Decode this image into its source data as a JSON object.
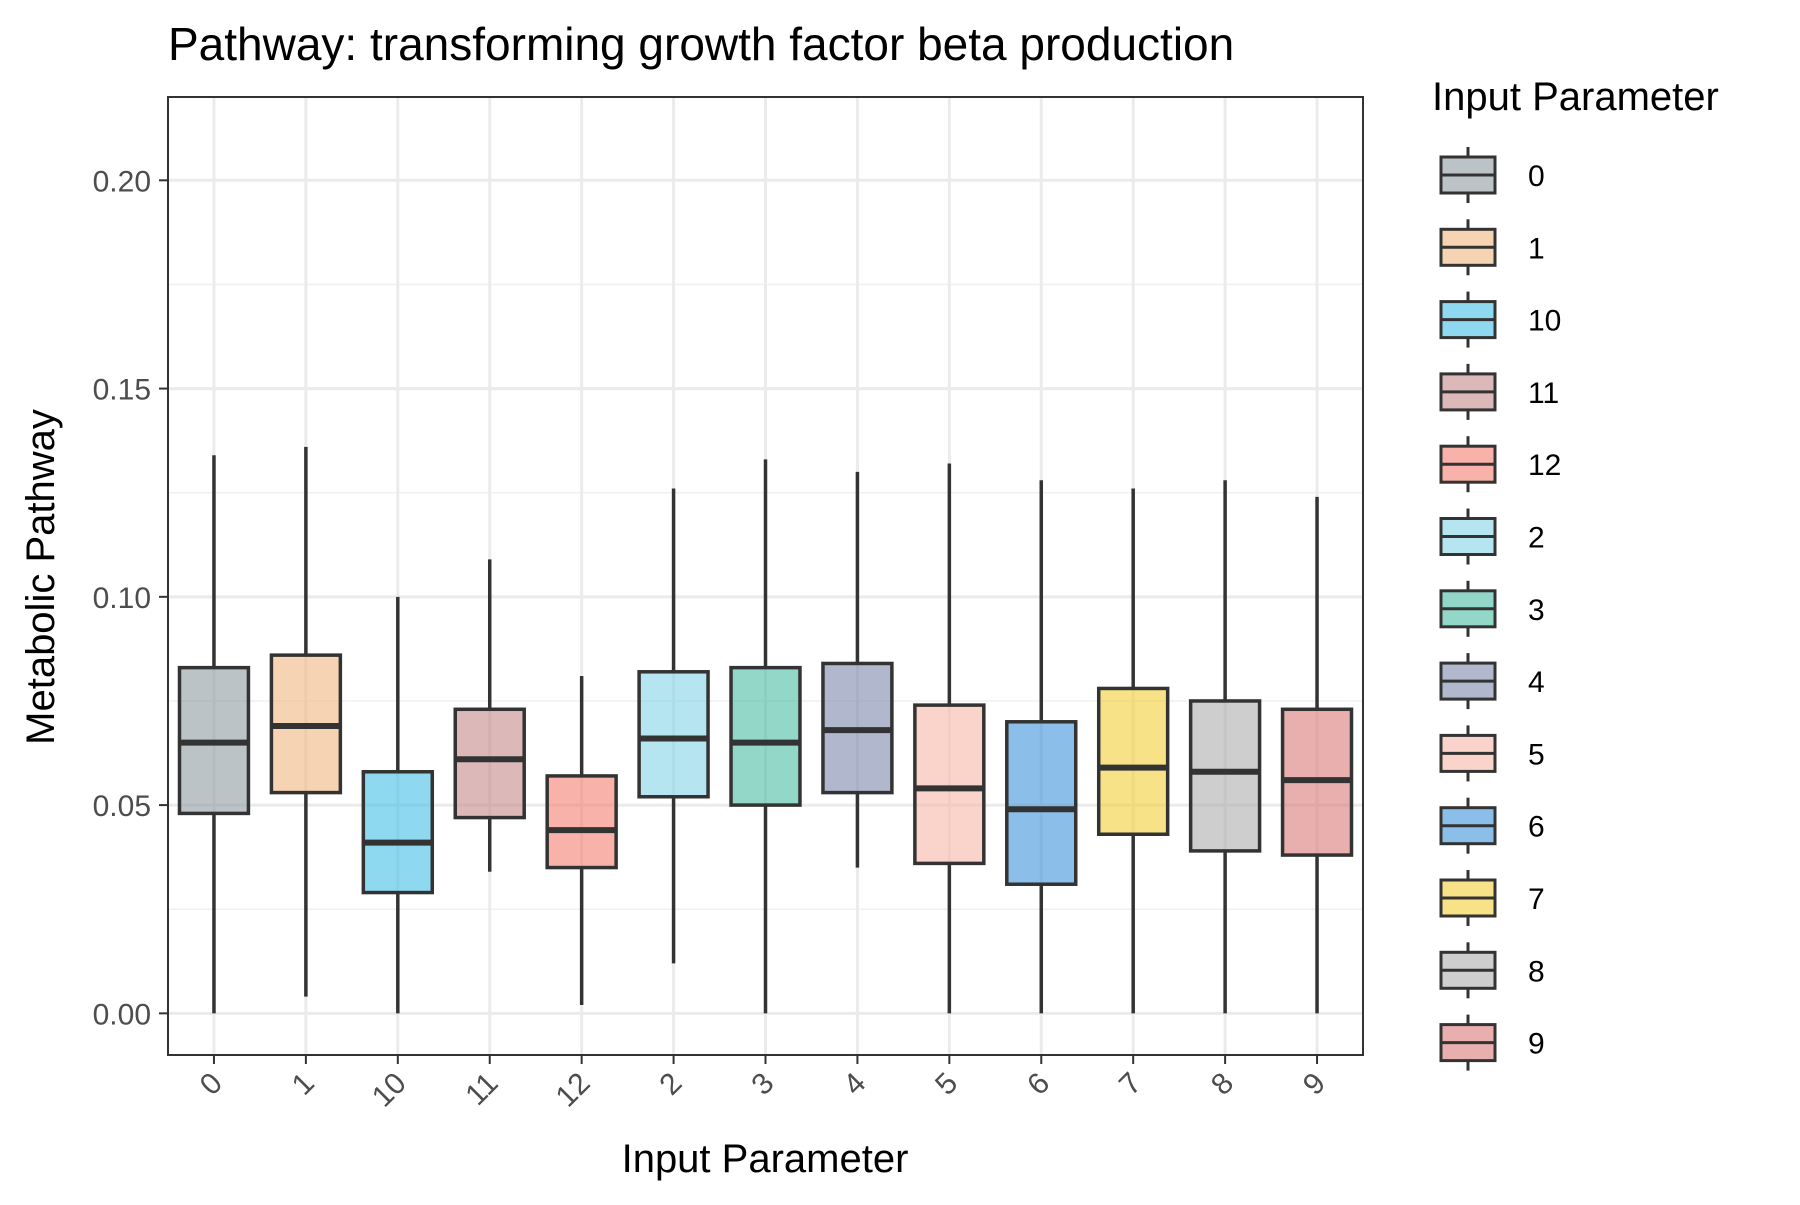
{
  "chart_data": {
    "type": "boxplot",
    "title": "Pathway: transforming growth factor beta production",
    "xlabel": "Input Parameter",
    "ylabel": "Metabolic Pathway",
    "legend_title": "Input Parameter",
    "legend_position": "right",
    "grid": true,
    "ylim": [
      -0.01,
      0.22
    ],
    "yticks": [
      0.0,
      0.05,
      0.1,
      0.15,
      0.2
    ],
    "ytick_labels": [
      "0.00",
      "0.05",
      "0.10",
      "0.15",
      "0.20"
    ],
    "categories": [
      "0",
      "1",
      "10",
      "11",
      "12",
      "2",
      "3",
      "4",
      "5",
      "6",
      "7",
      "8",
      "9"
    ],
    "boxes": [
      {
        "category": "0",
        "whisker_low": 0.0,
        "q1": 0.048,
        "median": 0.065,
        "q3": 0.083,
        "whisker_high": 0.134,
        "color": "#8e9ba1"
      },
      {
        "category": "1",
        "whisker_low": 0.004,
        "q1": 0.053,
        "median": 0.069,
        "q3": 0.086,
        "whisker_high": 0.136,
        "color": "#f0b880"
      },
      {
        "category": "10",
        "whisker_low": 0.0,
        "q1": 0.029,
        "median": 0.041,
        "q3": 0.058,
        "whisker_high": 0.1,
        "color": "#42bee6"
      },
      {
        "category": "11",
        "whisker_low": 0.034,
        "q1": 0.047,
        "median": 0.061,
        "q3": 0.073,
        "whisker_high": 0.109,
        "color": "#c48989"
      },
      {
        "category": "12",
        "whisker_low": 0.002,
        "q1": 0.035,
        "median": 0.044,
        "q3": 0.057,
        "whisker_high": 0.081,
        "color": "#f37e6f"
      },
      {
        "category": "2",
        "whisker_low": 0.012,
        "q1": 0.052,
        "median": 0.066,
        "q3": 0.082,
        "whisker_high": 0.126,
        "color": "#84d3e6"
      },
      {
        "category": "3",
        "whisker_low": 0.0,
        "q1": 0.05,
        "median": 0.065,
        "q3": 0.083,
        "whisker_high": 0.133,
        "color": "#49bca4"
      },
      {
        "category": "4",
        "whisker_low": 0.035,
        "q1": 0.053,
        "median": 0.068,
        "q3": 0.084,
        "whisker_high": 0.13,
        "color": "#7d88ad"
      },
      {
        "category": "5",
        "whisker_low": 0.0,
        "q1": 0.036,
        "median": 0.054,
        "q3": 0.074,
        "whisker_high": 0.132,
        "color": "#f7b6a9"
      },
      {
        "category": "6",
        "whisker_low": 0.0,
        "q1": 0.031,
        "median": 0.049,
        "q3": 0.07,
        "whisker_high": 0.128,
        "color": "#3e94db"
      },
      {
        "category": "7",
        "whisker_low": 0.0,
        "q1": 0.043,
        "median": 0.059,
        "q3": 0.078,
        "whisker_high": 0.126,
        "color": "#f2cf37"
      },
      {
        "category": "8",
        "whisker_low": 0.0,
        "q1": 0.039,
        "median": 0.058,
        "q3": 0.075,
        "whisker_high": 0.128,
        "color": "#adadad"
      },
      {
        "category": "9",
        "whisker_low": 0.0,
        "q1": 0.038,
        "median": 0.056,
        "q3": 0.073,
        "whisker_high": 0.124,
        "color": "#db7a7a"
      }
    ],
    "legend_entries": [
      "0",
      "1",
      "10",
      "11",
      "12",
      "2",
      "3",
      "4",
      "5",
      "6",
      "7",
      "8",
      "9"
    ]
  }
}
